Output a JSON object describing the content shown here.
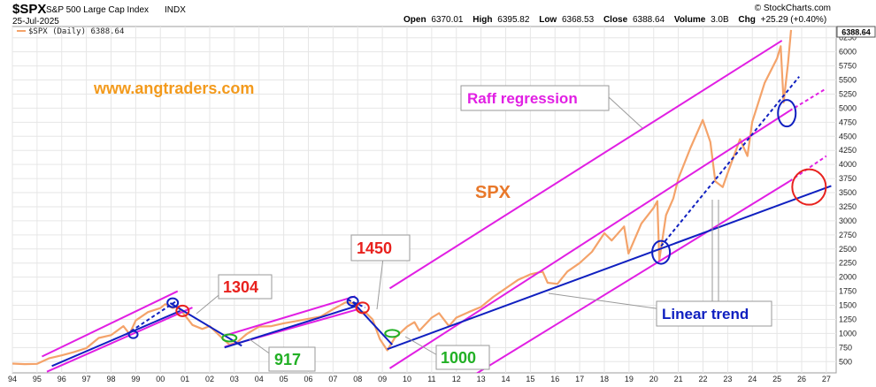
{
  "header": {
    "symbol": "$SPX",
    "name": "S&P 500 Large Cap Index",
    "exchange": "INDX",
    "date": "25-Jul-2025",
    "brand": "© StockCharts.com",
    "open_label": "Open",
    "open": "6370.01",
    "high_label": "High",
    "high": "6395.82",
    "low_label": "Low",
    "low": "6368.53",
    "close_label": "Close",
    "close": "6388.64",
    "volume_label": "Volume",
    "volume": "3.0B",
    "chg_label": "Chg",
    "chg": "+25.29 (+0.40%)"
  },
  "legend": {
    "text": "$SPX (Daily) 6388.64",
    "color": "#f4a36a"
  },
  "last_value_tag": "6388.64",
  "annotations": {
    "website": "www.angtraders.com",
    "spx_label": "SPX",
    "raff": "Raff regression",
    "linear": "Linear trend",
    "c1304": "1304",
    "c917": "917",
    "c1450": "1450",
    "c1000": "1000"
  },
  "colors": {
    "price": "#f4a36a",
    "raff": "#e11fe3",
    "linear": "#1020c0",
    "red_marker": "#e8211d",
    "green_marker": "#22b025",
    "grid": "#e6e6e6"
  },
  "chart_data": {
    "type": "line",
    "title": "",
    "xlabel": "",
    "ylabel": "",
    "x_ticks": [
      "94",
      "95",
      "96",
      "97",
      "98",
      "99",
      "00",
      "01",
      "02",
      "03",
      "04",
      "05",
      "06",
      "07",
      "08",
      "09",
      "10",
      "11",
      "12",
      "13",
      "14",
      "15",
      "16",
      "17",
      "18",
      "19",
      "20",
      "21",
      "22",
      "23",
      "24",
      "25",
      "26",
      "27"
    ],
    "y_ticks": [
      500,
      750,
      1000,
      1250,
      1500,
      1750,
      2000,
      2250,
      2500,
      2750,
      3000,
      3250,
      3500,
      3750,
      4000,
      4250,
      4500,
      4750,
      5000,
      5250,
      5500,
      5750,
      6000,
      6250
    ],
    "xlim": [
      1994.0,
      2027.4
    ],
    "ylim": [
      300,
      6450
    ],
    "grid": true,
    "legend_position": "top-left",
    "series": [
      {
        "name": "$SPX (Daily)",
        "x": [
          1994.0,
          1994.5,
          1995.0,
          1995.5,
          1996.0,
          1996.5,
          1997.0,
          1997.5,
          1998.0,
          1998.5,
          1998.75,
          1999.0,
          1999.5,
          2000.0,
          2000.2,
          2000.5,
          2000.7,
          2001.0,
          2001.3,
          2001.7,
          2002.0,
          2002.5,
          2002.8,
          2003.1,
          2003.5,
          2004.0,
          2004.5,
          2005.0,
          2005.5,
          2006.0,
          2006.5,
          2007.0,
          2007.5,
          2007.8,
          2008.0,
          2008.3,
          2008.6,
          2008.9,
          2009.2,
          2009.5,
          2010.0,
          2010.3,
          2010.5,
          2011.0,
          2011.3,
          2011.7,
          2012.0,
          2012.5,
          2013.0,
          2013.5,
          2014.0,
          2014.5,
          2015.0,
          2015.5,
          2015.7,
          2016.1,
          2016.5,
          2017.0,
          2017.5,
          2018.0,
          2018.3,
          2018.8,
          2018.98,
          2019.5,
          2020.0,
          2020.15,
          2020.23,
          2020.5,
          2020.8,
          2021.0,
          2021.5,
          2021.99,
          2022.3,
          2022.5,
          2022.8,
          2023.0,
          2023.5,
          2023.8,
          2024.0,
          2024.5,
          2025.0,
          2025.15,
          2025.27,
          2025.45,
          2025.57
        ],
        "values": [
          465,
          455,
          460,
          560,
          610,
          670,
          740,
          920,
          970,
          1130,
          990,
          1230,
          1380,
          1450,
          1520,
          1450,
          1480,
          1320,
          1150,
          1080,
          1130,
          920,
          800,
          840,
          990,
          1120,
          1130,
          1180,
          1220,
          1260,
          1300,
          1430,
          1550,
          1540,
          1400,
          1380,
          1250,
          900,
          700,
          920,
          1120,
          1200,
          1050,
          1280,
          1360,
          1130,
          1280,
          1380,
          1470,
          1650,
          1800,
          1950,
          2050,
          2100,
          1900,
          1880,
          2100,
          2250,
          2450,
          2780,
          2650,
          2900,
          2420,
          2950,
          3230,
          3350,
          2300,
          3100,
          3400,
          3750,
          4300,
          4790,
          4400,
          3700,
          3600,
          3850,
          4450,
          4150,
          4760,
          5450,
          5880,
          6100,
          5100,
          5800,
          6388.64
        ]
      }
    ],
    "trendlines": [
      {
        "name": "Raff regression upper 1995-2001",
        "color": "#e11fe3",
        "x": [
          1995.2,
          2000.7
        ],
        "values": [
          590,
          1750
        ]
      },
      {
        "name": "Raff regression lower 1995-2001",
        "color": "#e11fe3",
        "x": [
          1995.4,
          2001.3
        ],
        "values": [
          320,
          1460
        ]
      },
      {
        "name": "Raff regression upper 2002-2008",
        "color": "#e11fe3",
        "x": [
          2002.6,
          2007.9
        ],
        "values": [
          960,
          1660
        ]
      },
      {
        "name": "Raff regression lower 2002-2008",
        "color": "#e11fe3",
        "x": [
          2002.6,
          2008.1
        ],
        "values": [
          760,
          1440
        ]
      },
      {
        "name": "Raff regression upper 2009-2025",
        "color": "#e11fe3",
        "x": [
          2009.3,
          2025.2
        ],
        "values": [
          1800,
          6200
        ]
      },
      {
        "name": "Raff regression middle 2009-2025",
        "color": "#e11fe3",
        "x": [
          2009.3,
          2025.5
        ],
        "values": [
          380,
          4950
        ]
      },
      {
        "name": "Raff regression lower 2009-2025",
        "color": "#e11fe3",
        "x": [
          2011.0,
          2025.5
        ],
        "values": [
          -200,
          3700
        ]
      },
      {
        "name": "Raff regression middle extension",
        "color": "#e11fe3",
        "dashed": true,
        "x": [
          2025.5,
          2027.0
        ],
        "values": [
          4950,
          5350
        ]
      },
      {
        "name": "Raff regression lower extension",
        "color": "#e11fe3",
        "dashed": true,
        "x": [
          2025.5,
          2027.0
        ],
        "values": [
          3700,
          4150
        ]
      },
      {
        "name": "Linear trend 1995-2001",
        "color": "#1020c0",
        "x": [
          1995.6,
          2000.8
        ],
        "values": [
          420,
          1400
        ]
      },
      {
        "name": "Linear trend 1998-2000 dotted",
        "color": "#1020c0",
        "dashed": true,
        "x": [
          1998.6,
          2000.6
        ],
        "values": [
          980,
          1560
        ]
      },
      {
        "name": "Linear trend 2002-2008",
        "color": "#1020c0",
        "x": [
          2002.6,
          2007.9
        ],
        "values": [
          750,
          1480
        ]
      },
      {
        "name": "Linear trend 2001-2003 down",
        "color": "#1020c0",
        "x": [
          2000.4,
          2003.3
        ],
        "values": [
          1540,
          780
        ]
      },
      {
        "name": "Linear trend 2008-2009 down",
        "color": "#1020c0",
        "x": [
          2007.8,
          2009.4
        ],
        "values": [
          1560,
          800
        ]
      },
      {
        "name": "Linear trend 2009-2027",
        "color": "#1020c0",
        "x": [
          2009.2,
          2027.2
        ],
        "values": [
          720,
          3620
        ]
      },
      {
        "name": "Linear trend 2020-2025 dotted",
        "color": "#1020c0",
        "dashed": true,
        "x": [
          2020.3,
          2025.9
        ],
        "values": [
          2550,
          5560
        ]
      },
      {
        "name": "Linear trend 2008 dotted",
        "color": "#1020c0",
        "dashed": true,
        "x": [
          2007.6,
          2008.3
        ],
        "values": [
          1600,
          1460
        ]
      }
    ],
    "markers": [
      {
        "shape": "ellipse",
        "color": "#1020c0",
        "x": 1998.9,
        "y": 980,
        "rx": 5,
        "ry": 4
      },
      {
        "shape": "ellipse",
        "color": "#1020c0",
        "x": 2000.5,
        "y": 1545,
        "rx": 6,
        "ry": 5
      },
      {
        "shape": "ellipse",
        "color": "#e8211d",
        "x": 2000.9,
        "y": 1400,
        "rx": 7,
        "ry": 6
      },
      {
        "shape": "ellipse",
        "color": "#22b025",
        "x": 2002.8,
        "y": 920,
        "rx": 8,
        "ry": 4
      },
      {
        "shape": "ellipse",
        "color": "#1020c0",
        "x": 2007.8,
        "y": 1570,
        "rx": 6,
        "ry": 5
      },
      {
        "shape": "ellipse",
        "color": "#e8211d",
        "x": 2008.2,
        "y": 1455,
        "rx": 7,
        "ry": 6
      },
      {
        "shape": "ellipse",
        "color": "#22b025",
        "x": 2009.4,
        "y": 1000,
        "rx": 8,
        "ry": 4
      },
      {
        "shape": "ellipse",
        "color": "#1020c0",
        "x": 2020.3,
        "y": 2440,
        "rx": 10,
        "ry": 13
      },
      {
        "shape": "ellipse",
        "color": "#1020c0",
        "x": 2025.4,
        "y": 4910,
        "rx": 10,
        "ry": 15
      },
      {
        "shape": "ellipse",
        "color": "#e8211d",
        "x": 2026.3,
        "y": 3600,
        "rx": 19,
        "ry": 20
      }
    ]
  }
}
